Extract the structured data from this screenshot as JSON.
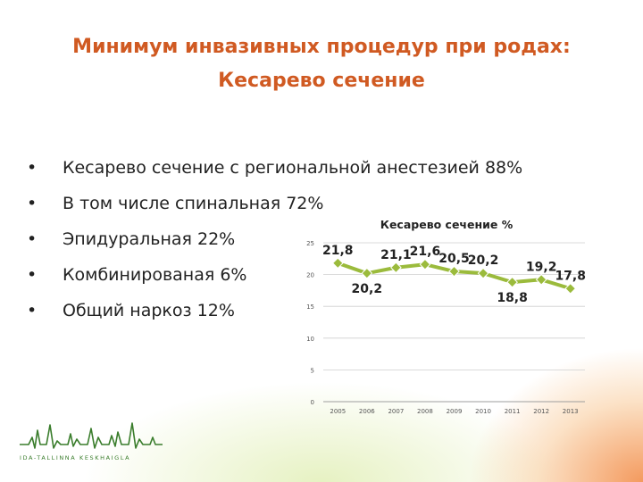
{
  "slide": {
    "title_line1": "Минимум инвазивных процедур при родах:",
    "title_line2": "Кесарево сечение",
    "bullet_glyph": "•",
    "bullets": [
      "Кесарево сечение с региональной анестезией 88%",
      "В том числе спинальная 72%",
      "Эпидуральная 22%",
      "Комбинированая 6%",
      "Общий наркоз 12%"
    ]
  },
  "chart_data": {
    "type": "line",
    "title": "Кесарево сечение %",
    "xlabel": "",
    "ylabel": "",
    "x": [
      "2005",
      "2006",
      "2007",
      "2008",
      "2009",
      "2010",
      "2011",
      "2012",
      "2013"
    ],
    "series": [
      {
        "values": [
          21.8,
          20.2,
          21.1,
          21.6,
          20.5,
          20.2,
          18.8,
          19.2,
          17.8
        ],
        "labels": [
          "21,8",
          "20,2",
          "21,1",
          "21,6",
          "20,5",
          "20,2",
          "18,8",
          "19,2",
          "17,8"
        ]
      }
    ],
    "ylim": [
      0,
      25
    ],
    "yticks": [
      "0",
      "5",
      "10",
      "15",
      "20",
      "25"
    ],
    "grid": true,
    "legend": "none",
    "line_color": "#9bbb3c"
  },
  "logo": {
    "text": "IDA-TALLINNA KESKHAIGLA",
    "color": "#3a7d2c"
  }
}
